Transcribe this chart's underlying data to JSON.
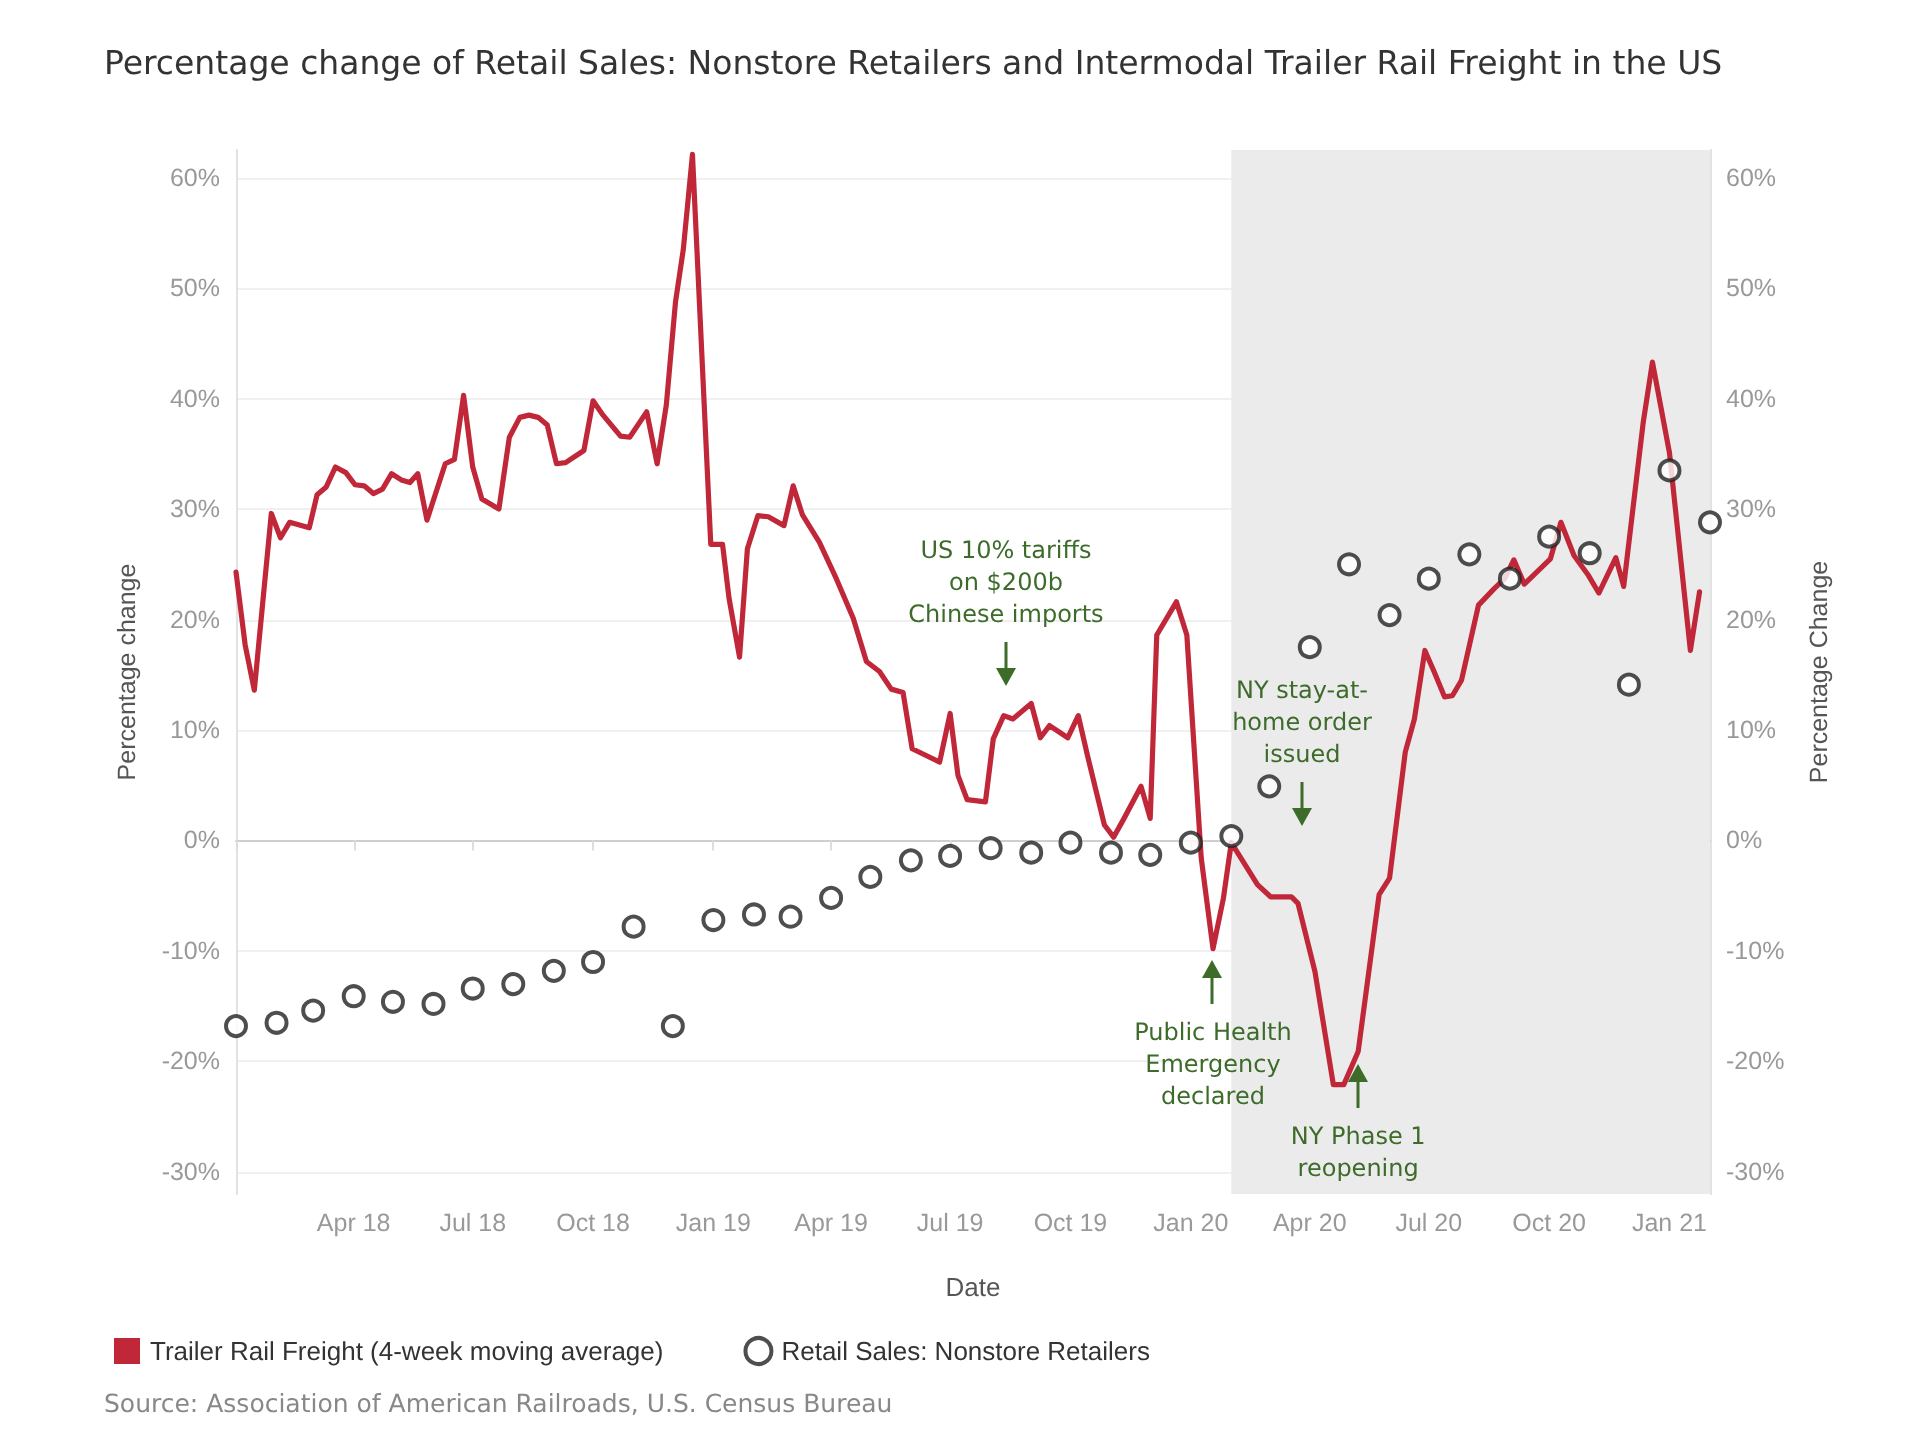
{
  "chart_data": {
    "type": "line",
    "title": "Percentage change of Retail Sales: Nonstore Retailers and Intermodal Trailer Rail Freight in the US",
    "xlabel": "Date",
    "ylabel": "Percentage change",
    "y2label": "Percentage Change",
    "xlim": [
      "2018-01-01",
      "2021-02-01"
    ],
    "xticks": [
      {
        "value": "2018-01-01",
        "label": null
      },
      {
        "value": "2018-04-01",
        "label": "Apr 18"
      },
      {
        "value": "2018-07-01",
        "label": "Jul 18"
      },
      {
        "value": "2018-10-01",
        "label": "Oct 18"
      },
      {
        "value": "2019-01-01",
        "label": "Jan 19"
      },
      {
        "value": "2019-04-01",
        "label": "Apr 19"
      },
      {
        "value": "2019-07-01",
        "label": "Jul 19"
      },
      {
        "value": "2019-10-01",
        "label": "Oct 19"
      },
      {
        "value": "2020-01-01",
        "label": "Jan 20"
      },
      {
        "value": "2020-04-01",
        "label": "Apr 20"
      },
      {
        "value": "2020-07-01",
        "label": "Jul 20"
      },
      {
        "value": "2020-10-01",
        "label": "Oct 20"
      },
      {
        "value": "2021-01-01",
        "label": "Jan 21"
      }
    ],
    "ylim": [
      -32,
      62.5
    ],
    "yticks": [
      {
        "value": -30,
        "label": "-30%"
      },
      {
        "value": -20,
        "label": "-20%"
      },
      {
        "value": -10,
        "label": "-10%"
      },
      {
        "value": 0,
        "label": "0%"
      },
      {
        "value": 10,
        "label": "10%"
      },
      {
        "value": 20,
        "label": "20%"
      },
      {
        "value": 30,
        "label": "30%"
      },
      {
        "value": 40,
        "label": "40%"
      },
      {
        "value": 50,
        "label": "50%"
      },
      {
        "value": 60,
        "label": "60%"
      }
    ],
    "y2lim": [
      -32,
      62.5
    ],
    "y2ticks": [
      {
        "value": -30,
        "label": "-30%"
      },
      {
        "value": -20,
        "label": "-20%"
      },
      {
        "value": -10,
        "label": "-10%"
      },
      {
        "value": 0,
        "label": "0%"
      },
      {
        "value": 10,
        "label": "10%"
      },
      {
        "value": 20,
        "label": "20%"
      },
      {
        "value": 30,
        "label": "30%"
      },
      {
        "value": 40,
        "label": "40%"
      },
      {
        "value": 50,
        "label": "50%"
      },
      {
        "value": 60,
        "label": "60%"
      }
    ],
    "grid": "y",
    "legend": "bottom",
    "bands": [
      {
        "axis": "x",
        "from": "2020-02-01",
        "to": "2021-02-01",
        "color": "#ebebeb"
      }
    ],
    "series": [
      {
        "name": "Trailer Rail Freight (4-week moving average)",
        "color": "#c0283a",
        "marker": "none",
        "line_style": "solid",
        "x": [
          "2018-01-01",
          "2018-01-08",
          "2018-01-15",
          "2018-01-28",
          "2018-02-04",
          "2018-02-11",
          "2018-02-26",
          "2018-03-04",
          "2018-03-11",
          "2018-03-18",
          "2018-03-26",
          "2018-04-02",
          "2018-04-09",
          "2018-04-16",
          "2018-04-23",
          "2018-04-30",
          "2018-05-08",
          "2018-05-14",
          "2018-05-20",
          "2018-05-27",
          "2018-06-10",
          "2018-06-17",
          "2018-06-24",
          "2018-07-01",
          "2018-07-08",
          "2018-07-21",
          "2018-07-29",
          "2018-08-06",
          "2018-08-13",
          "2018-08-20",
          "2018-08-27",
          "2018-09-03",
          "2018-09-10",
          "2018-09-24",
          "2018-10-01",
          "2018-10-08",
          "2018-10-22",
          "2018-10-29",
          "2018-11-11",
          "2018-11-19",
          "2018-11-26",
          "2018-12-03",
          "2018-12-09",
          "2018-12-16",
          "2018-12-30",
          "2019-01-08",
          "2019-01-13",
          "2019-01-21",
          "2019-01-27",
          "2019-02-04",
          "2019-02-12",
          "2019-02-24",
          "2019-03-03",
          "2019-03-10",
          "2019-03-23",
          "2019-04-05",
          "2019-04-18",
          "2019-04-28",
          "2019-05-08",
          "2019-05-17",
          "2019-05-26",
          "2019-06-02",
          "2019-06-23",
          "2019-07-01",
          "2019-07-07",
          "2019-07-14",
          "2019-07-28",
          "2019-08-03",
          "2019-08-11",
          "2019-08-18",
          "2019-09-01",
          "2019-09-08",
          "2019-09-15",
          "2019-09-29",
          "2019-10-07",
          "2019-10-14",
          "2019-10-27",
          "2019-11-03",
          "2019-11-11",
          "2019-11-24",
          "2019-12-01",
          "2019-12-06",
          "2019-12-21",
          "2019-12-29",
          "2020-01-09",
          "2020-01-18",
          "2020-01-26",
          "2020-02-01",
          "2020-02-21",
          "2020-03-02",
          "2020-03-18",
          "2020-03-23",
          "2020-04-05",
          "2020-04-19",
          "2020-04-27",
          "2020-05-08",
          "2020-05-24",
          "2020-06-01",
          "2020-06-13",
          "2020-06-20",
          "2020-06-28",
          "2020-07-05",
          "2020-07-13",
          "2020-07-19",
          "2020-07-26",
          "2020-08-08",
          "2020-08-20",
          "2020-08-28",
          "2020-09-04",
          "2020-09-12",
          "2020-10-02",
          "2020-10-10",
          "2020-10-20",
          "2020-10-31",
          "2020-11-08",
          "2020-11-21",
          "2020-11-27",
          "2020-12-12",
          "2020-12-19",
          "2021-01-01",
          "2021-01-17",
          "2021-01-24"
        ],
        "values": [
          24.3,
          17.7,
          13.6,
          29.6,
          27.4,
          28.8,
          28.3,
          31.3,
          32.0,
          33.8,
          33.3,
          32.2,
          32.1,
          31.4,
          31.8,
          33.2,
          32.6,
          32.4,
          33.2,
          29.0,
          34.1,
          34.5,
          40.3,
          33.8,
          30.9,
          30.0,
          36.5,
          38.3,
          38.5,
          38.3,
          37.6,
          34.1,
          34.2,
          35.3,
          39.8,
          38.6,
          36.6,
          36.5,
          38.8,
          34.1,
          39.4,
          48.7,
          53.5,
          62.1,
          26.8,
          26.8,
          21.9,
          16.6,
          26.4,
          29.4,
          29.3,
          28.5,
          32.1,
          29.5,
          27.0,
          23.7,
          20.1,
          16.2,
          15.3,
          13.7,
          13.4,
          8.3,
          7.1,
          11.5,
          5.9,
          3.7,
          3.5,
          9.2,
          11.3,
          11.0,
          12.4,
          9.3,
          10.4,
          9.3,
          11.3,
          7.7,
          1.4,
          0.3,
          2.0,
          4.9,
          2.0,
          18.6,
          21.6,
          18.6,
          -1.6,
          -9.8,
          -5.2,
          -0.2,
          -4.0,
          -5.1,
          -5.1,
          -5.7,
          -11.9,
          -22.1,
          -22.1,
          -19.1,
          -4.9,
          -3.4,
          8.0,
          11.0,
          17.2,
          15.3,
          13.0,
          13.1,
          14.5,
          21.3,
          22.8,
          23.7,
          25.4,
          23.2,
          25.5,
          28.8,
          25.8,
          24.0,
          22.4,
          25.6,
          23.0,
          37.9,
          43.3,
          35.1,
          17.2,
          22.5
        ]
      },
      {
        "name": "Retail Sales: Nonstore Retailers",
        "type": "scatter",
        "color": "#222222",
        "marker": "circle",
        "x": [
          "2018-01-01",
          "2018-02-01",
          "2018-03-01",
          "2018-04-01",
          "2018-05-01",
          "2018-06-01",
          "2018-07-01",
          "2018-08-01",
          "2018-09-01",
          "2018-10-01",
          "2018-11-01",
          "2018-12-01",
          "2019-01-01",
          "2019-02-01",
          "2019-03-01",
          "2019-04-01",
          "2019-05-01",
          "2019-06-01",
          "2019-07-01",
          "2019-08-01",
          "2019-09-01",
          "2019-10-01",
          "2019-11-01",
          "2019-12-01",
          "2020-01-01",
          "2020-02-01",
          "2020-03-01",
          "2020-04-01",
          "2020-05-01",
          "2020-06-01",
          "2020-07-01",
          "2020-08-01",
          "2020-09-01",
          "2020-10-01",
          "2020-11-01",
          "2020-12-01",
          "2021-01-01",
          "2021-02-01"
        ],
        "values": [
          -16.8,
          -16.5,
          -15.4,
          -14.1,
          -14.6,
          -14.8,
          -13.4,
          -13.0,
          -11.8,
          -11.0,
          -7.8,
          -16.8,
          -7.2,
          -6.7,
          -6.9,
          -5.2,
          -3.3,
          -1.8,
          -1.4,
          -0.7,
          -1.1,
          -0.2,
          -1.1,
          -1.3,
          -0.2,
          0.4,
          4.9,
          17.5,
          25.0,
          20.4,
          23.7,
          25.9,
          23.7,
          27.5,
          26.0,
          14.1,
          33.5,
          28.8
        ]
      }
    ],
    "annotations": [
      "US 10% tariffs\non $200b\nChinese imports",
      "NY stay-at-\nhome order\nissued",
      {
        "text": "Public Health\nEmergency\ndeclared",
        "x": "2020-01-18",
        "y": -9.8
      },
      {
        "text": "NY Phase 1\nreopening",
        "x": "2020-05-08",
        "y": -19.1
      },
      "Source: Association of American Railroads, U.S. Census Bureau"
    ]
  }
}
